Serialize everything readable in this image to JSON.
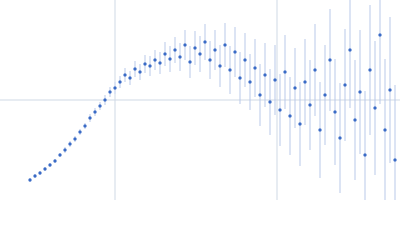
{
  "chart_data": {
    "type": "scatter",
    "grid": true,
    "xlim": [
      0,
      400
    ],
    "ylim": [
      0,
      200
    ],
    "xticks": [
      115,
      277
    ],
    "yticks": [
      100
    ],
    "series": [
      {
        "color": "#3a6bc6",
        "error_color": "#b9c9e9",
        "x": [
          30,
          35,
          40,
          45,
          50,
          55,
          60,
          65,
          70,
          75,
          80,
          85,
          90,
          95,
          100,
          105,
          110,
          115,
          120,
          125,
          130,
          135,
          140,
          145,
          150,
          155,
          160,
          165,
          170,
          175,
          180,
          185,
          190,
          195,
          200,
          205,
          210,
          215,
          220,
          225,
          230,
          235,
          240,
          245,
          250,
          255,
          260,
          265,
          270,
          275,
          280,
          285,
          290,
          295,
          300,
          305,
          310,
          315,
          320,
          325,
          330,
          335,
          340,
          345,
          350,
          355,
          360,
          365,
          370,
          375,
          380,
          385,
          390,
          395
        ],
        "values": [
          20,
          24,
          27,
          31,
          35,
          39,
          45,
          50,
          56,
          61,
          68,
          74,
          82,
          88,
          94,
          100,
          108,
          112,
          118,
          125,
          122,
          131,
          128,
          136,
          134,
          140,
          137,
          146,
          141,
          150,
          143,
          155,
          138,
          152,
          146,
          158,
          140,
          150,
          134,
          155,
          130,
          148,
          122,
          140,
          118,
          132,
          105,
          125,
          98,
          120,
          90,
          128,
          84,
          112,
          76,
          118,
          95,
          130,
          70,
          105,
          140,
          88,
          62,
          115,
          150,
          80,
          108,
          45,
          130,
          92,
          165,
          70,
          110,
          40
        ],
        "errors": [
          2,
          2,
          2,
          2,
          2,
          2,
          2,
          3,
          3,
          3,
          3,
          3,
          4,
          4,
          4,
          5,
          5,
          6,
          6,
          7,
          7,
          8,
          8,
          9,
          10,
          10,
          11,
          12,
          13,
          13,
          14,
          15,
          16,
          17,
          18,
          18,
          19,
          20,
          21,
          22,
          24,
          25,
          26,
          27,
          28,
          29,
          31,
          32,
          33,
          35,
          36,
          37,
          39,
          40,
          42,
          43,
          45,
          46,
          48,
          50,
          51,
          53,
          55,
          56,
          58,
          60,
          62,
          64,
          65,
          67,
          69,
          71,
          73,
          75
        ]
      }
    ]
  }
}
